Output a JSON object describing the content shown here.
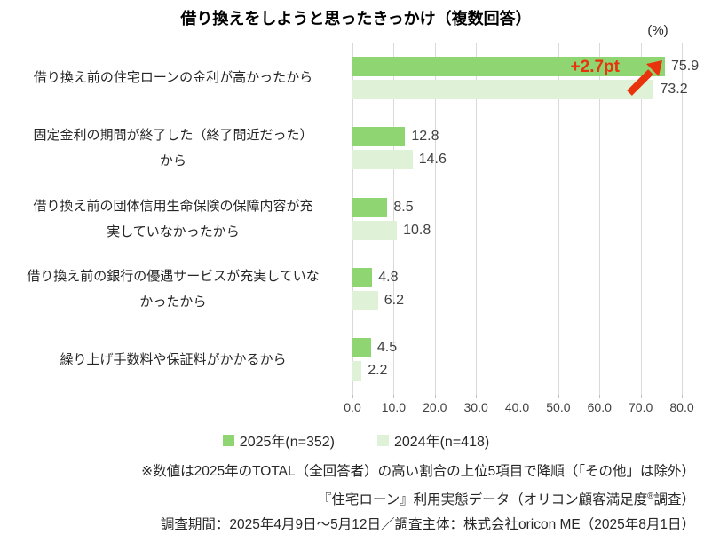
{
  "title": "借り換えをしようと思ったきっかけ（複数回答）",
  "unit_label": "(%)",
  "chart_data": {
    "type": "bar",
    "orientation": "horizontal",
    "title": "借り換えをしようと思ったきっかけ（複数回答）",
    "categories": [
      "借り換え前の住宅ローンの金利が高かったから",
      "固定金利の期間が終了した（終了間近だった）\nから",
      "借り換え前の団体信用生命保険の保障内容が充\n実していなかったから",
      "借り換え前の銀行の優遇サービスが充実していな\nかったから",
      "繰り上げ手数料や保証料がかかるから"
    ],
    "series": [
      {
        "name": "2025年(n=352)",
        "color": "#8FD673",
        "values": [
          75.9,
          12.8,
          8.5,
          4.8,
          4.5
        ]
      },
      {
        "name": "2024年(n=418)",
        "color": "#DFF2D8",
        "values": [
          73.2,
          14.6,
          10.8,
          6.2,
          2.2
        ]
      }
    ],
    "xlim": [
      0,
      80
    ],
    "x_ticks": [
      "0.0",
      "10.0",
      "20.0",
      "30.0",
      "40.0",
      "50.0",
      "60.0",
      "70.0",
      "80.0"
    ],
    "grid": true,
    "legend_position": "bottom",
    "annotation": {
      "text": "+2.7pt",
      "color": "#E8330C"
    }
  },
  "footnotes": {
    "line1": "※数値は2025年のTOTAL（全回答者）の高い割合の上位5項目で降順（「その他」は除外）",
    "line2_prefix": "『住宅ローン』利用実態データ（オリコン顧客満足度",
    "line2_sup": "®",
    "line2_suffix": "調査）",
    "line3": "調査期間：2025年4月9日～5月12日／調査主体：株式会社oricon ME（2025年8月1日）"
  },
  "colors": {
    "series_2025": "#8FD673",
    "series_2024": "#DFF2D8",
    "gridline": "#D9D9D9",
    "annotation_red": "#E8330C"
  }
}
